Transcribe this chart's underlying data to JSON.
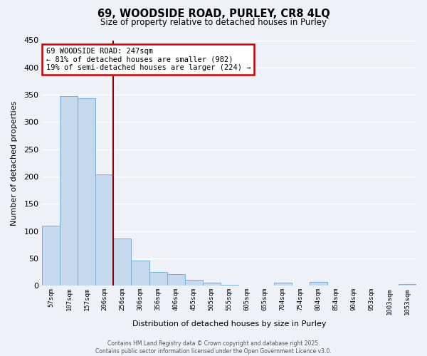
{
  "title": "69, WOODSIDE ROAD, PURLEY, CR8 4LQ",
  "subtitle": "Size of property relative to detached houses in Purley",
  "xlabel": "Distribution of detached houses by size in Purley",
  "ylabel": "Number of detached properties",
  "bar_labels": [
    "57sqm",
    "107sqm",
    "157sqm",
    "206sqm",
    "256sqm",
    "306sqm",
    "356sqm",
    "406sqm",
    "455sqm",
    "505sqm",
    "555sqm",
    "605sqm",
    "655sqm",
    "704sqm",
    "754sqm",
    "804sqm",
    "854sqm",
    "904sqm",
    "953sqm",
    "1003sqm",
    "1053sqm"
  ],
  "bar_heights": [
    110,
    348,
    343,
    204,
    87,
    46,
    25,
    21,
    11,
    5,
    2,
    0,
    0,
    5,
    0,
    7,
    0,
    0,
    0,
    0,
    3
  ],
  "bar_color": "#c5d8ed",
  "bar_edge_color": "#7bafd4",
  "vline_x": 3.5,
  "vline_color": "#8b0000",
  "annotation_line1": "69 WOODSIDE ROAD: 247sqm",
  "annotation_line2": "← 81% of detached houses are smaller (982)",
  "annotation_line3": "19% of semi-detached houses are larger (224) →",
  "annotation_box_edge_color": "#cc0000",
  "ylim": [
    0,
    450
  ],
  "yticks": [
    0,
    50,
    100,
    150,
    200,
    250,
    300,
    350,
    400,
    450
  ],
  "footer_line1": "Contains HM Land Registry data © Crown copyright and database right 2025.",
  "footer_line2": "Contains public sector information licensed under the Open Government Licence v3.0.",
  "bg_color": "#eef2f8",
  "plot_bg_color": "#eef2f8",
  "grid_color": "#ffffff"
}
